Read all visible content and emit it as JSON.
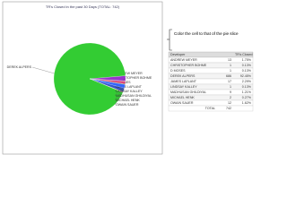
{
  "chart_data": {
    "type": "pie",
    "title": "TR's Closed in the past 30 Days   (TOTAL: 742)",
    "categories": [
      "ANDREW MEYER",
      "CHRISTOPHER BOHME",
      "D MOSES",
      "DEREK ALPERS",
      "JAMES LAPLANT",
      "LINDSAY KALLEY",
      "MADHUSAN GHILDIYAL",
      "MICHAEL HENK",
      "OWAIN SAUER"
    ],
    "values": [
      13,
      1,
      1,
      686,
      17,
      1,
      9,
      2,
      12
    ],
    "colors": [
      "#3355cc",
      "#cc3333",
      "#ff9900",
      "#33cc33",
      "#9933cc",
      "#00aaaa",
      "#dd4477",
      "#666600",
      "#3366ff"
    ]
  },
  "annotation": {
    "text": "Color the cell to that of the pie slice"
  },
  "table": {
    "headers": [
      "Developer",
      "TR's Closed"
    ],
    "percents": [
      "1.75%",
      "0.13%",
      "0.13%",
      "92.45%",
      "2.29%",
      "0.13%",
      "1.21%",
      "0.27%",
      "1.62%"
    ],
    "total_label": "TOTAL",
    "total": "742"
  }
}
